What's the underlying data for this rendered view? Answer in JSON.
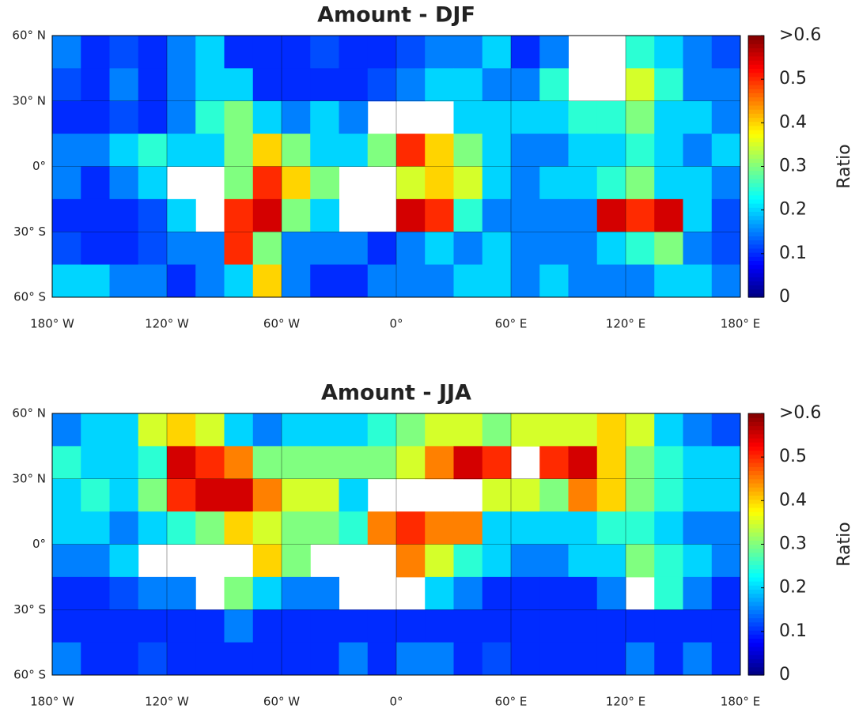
{
  "chart_data": [
    {
      "type": "heatmap",
      "title": "Amount - DJF",
      "colormap": "jet",
      "xlim": [
        -180,
        180
      ],
      "ylim": [
        -60,
        60
      ],
      "xticks": [
        {
          "value": -180,
          "label": "180° W"
        },
        {
          "value": -120,
          "label": "120° W"
        },
        {
          "value": -60,
          "label": "60° W"
        },
        {
          "value": 0,
          "label": "0°"
        },
        {
          "value": 60,
          "label": "60° E"
        },
        {
          "value": 120,
          "label": "120° E"
        },
        {
          "value": 180,
          "label": "180° E"
        }
      ],
      "yticks": [
        {
          "value": 60,
          "label": "60° N"
        },
        {
          "value": 30,
          "label": "30° N"
        },
        {
          "value": 0,
          "label": "0°"
        },
        {
          "value": -30,
          "label": "30° S"
        },
        {
          "value": -60,
          "label": "60° S"
        }
      ],
      "xbins": [
        -180,
        -165,
        -150,
        -135,
        -120,
        -105,
        -90,
        -75,
        -60,
        -45,
        -30,
        -15,
        0,
        15,
        30,
        45,
        60,
        75,
        90,
        105,
        120,
        135,
        150,
        165,
        180
      ],
      "ybins": [
        60,
        45,
        30,
        15,
        0,
        -15,
        -30,
        -45,
        -60
      ],
      "z": [
        [
          0.15,
          0.1,
          0.12,
          0.1,
          0.15,
          0.2,
          0.1,
          0.1,
          0.1,
          0.12,
          0.1,
          0.1,
          0.12,
          0.15,
          0.15,
          0.2,
          0.1,
          0.15,
          null,
          null,
          0.25,
          0.2,
          0.15,
          0.12
        ],
        [
          0.12,
          0.1,
          0.15,
          0.1,
          0.15,
          0.2,
          0.2,
          0.1,
          0.1,
          0.1,
          0.1,
          0.12,
          0.15,
          0.2,
          0.2,
          0.15,
          0.15,
          0.25,
          null,
          null,
          0.35,
          0.25,
          0.15,
          0.15
        ],
        [
          0.1,
          0.1,
          0.12,
          0.1,
          0.15,
          0.25,
          0.3,
          0.2,
          0.15,
          0.2,
          0.15,
          null,
          null,
          null,
          0.2,
          0.2,
          0.2,
          0.2,
          0.25,
          0.25,
          0.3,
          0.2,
          0.2,
          0.15
        ],
        [
          0.15,
          0.15,
          0.2,
          0.25,
          0.2,
          0.2,
          0.3,
          0.4,
          0.3,
          0.2,
          0.2,
          0.3,
          0.5,
          0.4,
          0.3,
          0.2,
          0.15,
          0.15,
          0.2,
          0.2,
          0.25,
          0.2,
          0.15,
          0.2
        ],
        [
          0.15,
          0.1,
          0.15,
          0.2,
          null,
          null,
          0.3,
          0.5,
          0.4,
          0.3,
          null,
          null,
          0.35,
          0.4,
          0.35,
          0.2,
          0.15,
          0.2,
          0.2,
          0.25,
          0.3,
          0.2,
          0.2,
          0.15
        ],
        [
          0.1,
          0.1,
          0.1,
          0.12,
          0.2,
          null,
          0.5,
          0.55,
          0.3,
          0.2,
          null,
          null,
          0.55,
          0.5,
          0.25,
          0.15,
          0.15,
          0.15,
          0.15,
          0.55,
          0.5,
          0.55,
          0.2,
          0.12
        ],
        [
          0.12,
          0.1,
          0.1,
          0.12,
          0.15,
          0.15,
          0.5,
          0.3,
          0.15,
          0.15,
          0.15,
          0.1,
          0.15,
          0.2,
          0.15,
          0.2,
          0.15,
          0.15,
          0.15,
          0.2,
          0.25,
          0.3,
          0.15,
          0.12
        ],
        [
          0.2,
          0.2,
          0.15,
          0.15,
          0.1,
          0.15,
          0.2,
          0.4,
          0.15,
          0.1,
          0.1,
          0.15,
          0.15,
          0.15,
          0.2,
          0.2,
          0.15,
          0.2,
          0.15,
          0.15,
          0.15,
          0.2,
          0.2,
          0.15
        ]
      ],
      "colorbar": {
        "label": "Ratio",
        "lim": [
          0,
          0.6
        ],
        "ticks": [
          0,
          0.1,
          0.2,
          0.3,
          0.4,
          0.5,
          {
            "value": 0.6,
            "label": ">0.6"
          }
        ]
      }
    },
    {
      "type": "heatmap",
      "title": "Amount - JJA",
      "colormap": "jet",
      "xlim": [
        -180,
        180
      ],
      "ylim": [
        -60,
        60
      ],
      "xticks": [
        {
          "value": -180,
          "label": "180° W"
        },
        {
          "value": -120,
          "label": "120° W"
        },
        {
          "value": -60,
          "label": "60° W"
        },
        {
          "value": 0,
          "label": "0°"
        },
        {
          "value": 60,
          "label": "60° E"
        },
        {
          "value": 120,
          "label": "120° E"
        },
        {
          "value": 180,
          "label": "180° E"
        }
      ],
      "yticks": [
        {
          "value": 60,
          "label": "60° N"
        },
        {
          "value": 30,
          "label": "30° N"
        },
        {
          "value": 0,
          "label": "0°"
        },
        {
          "value": -30,
          "label": "30° S"
        },
        {
          "value": -60,
          "label": "60° S"
        }
      ],
      "xbins": [
        -180,
        -165,
        -150,
        -135,
        -120,
        -105,
        -90,
        -75,
        -60,
        -45,
        -30,
        -15,
        0,
        15,
        30,
        45,
        60,
        75,
        90,
        105,
        120,
        135,
        150,
        165,
        180
      ],
      "ybins": [
        60,
        45,
        30,
        15,
        0,
        -15,
        -30,
        -45,
        -60
      ],
      "z": [
        [
          0.15,
          0.2,
          0.2,
          0.35,
          0.4,
          0.35,
          0.2,
          0.15,
          0.2,
          0.2,
          0.2,
          0.25,
          0.3,
          0.35,
          0.35,
          0.3,
          0.35,
          0.35,
          0.35,
          0.4,
          0.35,
          0.2,
          0.15,
          0.12
        ],
        [
          0.25,
          0.2,
          0.2,
          0.25,
          0.55,
          0.5,
          0.45,
          0.3,
          0.3,
          0.3,
          0.3,
          0.3,
          0.35,
          0.45,
          0.55,
          0.5,
          null,
          0.5,
          0.55,
          0.4,
          0.3,
          0.25,
          0.2,
          0.2
        ],
        [
          0.2,
          0.25,
          0.2,
          0.3,
          0.5,
          0.55,
          0.55,
          0.45,
          0.35,
          0.35,
          0.2,
          null,
          null,
          null,
          null,
          0.35,
          0.35,
          0.3,
          0.45,
          0.4,
          0.3,
          0.25,
          0.2,
          0.2
        ],
        [
          0.2,
          0.2,
          0.15,
          0.2,
          0.25,
          0.3,
          0.4,
          0.35,
          0.3,
          0.3,
          0.25,
          0.45,
          0.5,
          0.45,
          0.45,
          0.2,
          0.2,
          0.2,
          0.2,
          0.25,
          0.25,
          0.2,
          0.15,
          0.15
        ],
        [
          0.15,
          0.15,
          0.2,
          null,
          null,
          null,
          null,
          0.4,
          0.3,
          null,
          null,
          null,
          0.45,
          0.35,
          0.25,
          0.2,
          0.15,
          0.15,
          0.2,
          0.2,
          0.3,
          0.25,
          0.2,
          0.15
        ],
        [
          0.1,
          0.1,
          0.12,
          0.15,
          0.15,
          null,
          0.3,
          0.2,
          0.15,
          0.15,
          null,
          null,
          null,
          0.2,
          0.15,
          0.1,
          0.1,
          0.1,
          0.1,
          0.15,
          null,
          0.25,
          0.15,
          0.1
        ],
        [
          0.1,
          0.1,
          0.1,
          0.1,
          0.1,
          0.1,
          0.15,
          0.1,
          0.1,
          0.1,
          0.1,
          0.1,
          0.1,
          0.1,
          0.1,
          0.1,
          0.1,
          0.1,
          0.1,
          0.1,
          0.1,
          0.1,
          0.1,
          0.1
        ],
        [
          0.15,
          0.1,
          0.1,
          0.12,
          0.1,
          0.1,
          0.1,
          0.1,
          0.1,
          0.1,
          0.15,
          0.1,
          0.15,
          0.15,
          0.1,
          0.12,
          0.1,
          0.1,
          0.1,
          0.1,
          0.15,
          0.1,
          0.15,
          0.1
        ]
      ],
      "colorbar": {
        "label": "Ratio",
        "lim": [
          0,
          0.6
        ],
        "ticks": [
          0,
          0.1,
          0.2,
          0.3,
          0.4,
          0.5,
          {
            "value": 0.6,
            "label": ">0.6"
          }
        ]
      }
    }
  ]
}
